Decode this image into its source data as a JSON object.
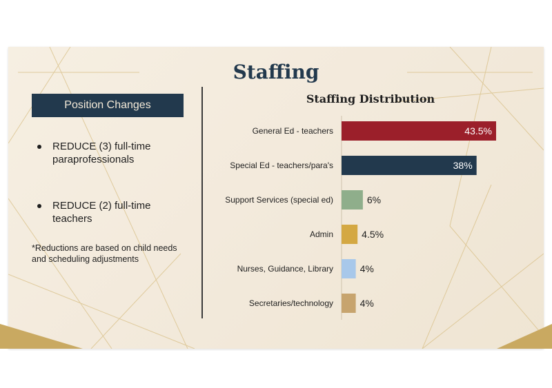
{
  "slide": {
    "title": "Staffing"
  },
  "left_panel": {
    "box_label": "Position Changes",
    "bullets": [
      "REDUCE (3) full-time paraprofessionals",
      "REDUCE (2) full-time teachers"
    ],
    "footnote": "*Reductions are based on child needs and scheduling adjustments"
  },
  "colors": {
    "navy": "#22394d",
    "gold": "#c9a961"
  },
  "chart_data": {
    "type": "bar",
    "orientation": "horizontal",
    "title": "Staffing Distribution",
    "categories": [
      "General Ed - teachers",
      "Special Ed - teachers/para's",
      "Support Services (special ed)",
      "Admin",
      "Nurses, Guidance, Library",
      "Secretaries/technology"
    ],
    "values": [
      43.5,
      38,
      6,
      4.5,
      4,
      4
    ],
    "value_labels": [
      "43.5%",
      "38%",
      "6%",
      "4.5%",
      "4%",
      "4%"
    ],
    "colors": [
      "#9b1f2a",
      "#22394d",
      "#8fae8b",
      "#d4a843",
      "#a8c8ea",
      "#c7a46e"
    ],
    "label_inside": [
      true,
      true,
      false,
      false,
      false,
      false
    ],
    "xlim": [
      0,
      43.5
    ],
    "grid": false,
    "legend": "none"
  }
}
